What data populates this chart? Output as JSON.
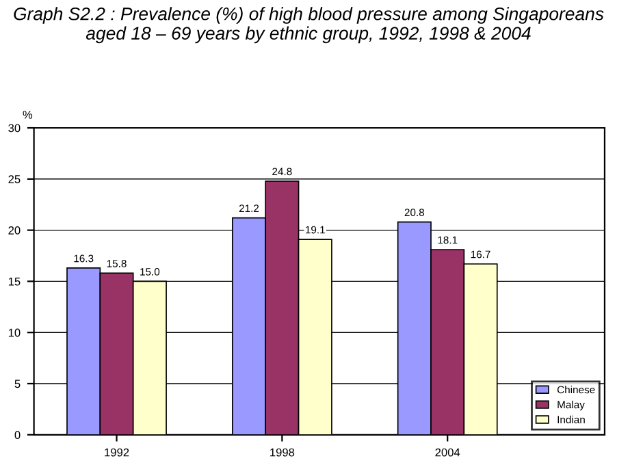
{
  "chart_data": {
    "type": "bar",
    "title": "Graph S2.2 : Prevalence (%) of high blood pressure among Singaporeans\naged 18 – 69 years by ethnic group, 1992, 1998 & 2004",
    "ylabel": "%",
    "categories": [
      "1992",
      "1998",
      "2004"
    ],
    "series": [
      {
        "name": "Chinese",
        "color": "#9999ff",
        "values": [
          16.3,
          21.2,
          20.8
        ],
        "value_labels": [
          "16.3",
          "21.2",
          "20.8"
        ]
      },
      {
        "name": "Malay",
        "color": "#993366",
        "values": [
          15.8,
          24.8,
          18.1
        ],
        "value_labels": [
          "15.8",
          "24.8",
          "18.1"
        ]
      },
      {
        "name": "Indian",
        "color": "#ffffcc",
        "values": [
          15.0,
          19.1,
          16.7
        ],
        "value_labels": [
          "15.0",
          "19.1",
          "16.7"
        ]
      }
    ],
    "ylim": [
      0,
      30
    ],
    "yticks": [
      0,
      5,
      10,
      15,
      20,
      25,
      30
    ],
    "grid": "y",
    "legend": "bottom right"
  }
}
